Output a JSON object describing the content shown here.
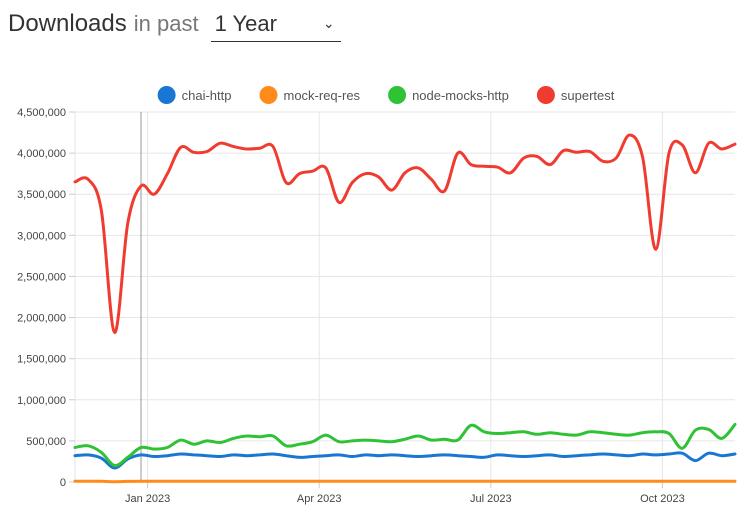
{
  "header": {
    "title": "Downloads",
    "subtitle": "in past",
    "period": "1 Year"
  },
  "colors": {
    "chai-http": "#1976d2",
    "mock-req-res": "#ff8c1a",
    "node-mocks-http": "#2ec234",
    "supertest": "#f03c30"
  },
  "chart_data": {
    "type": "line",
    "title": "Downloads in past 1 Year",
    "xlabel": "",
    "ylabel": "",
    "ylim": [
      0,
      4500000
    ],
    "yticks": [
      "0",
      "500,000",
      "1,000,000",
      "1,500,000",
      "2,000,000",
      "2,500,000",
      "3,000,000",
      "3,500,000",
      "4,000,000",
      "4,500,000"
    ],
    "xticks": [
      "Jan 2023",
      "Apr 2023",
      "Jul 2023",
      "Oct 2023"
    ],
    "xtick_positions": [
      5.5,
      18.5,
      31.5,
      44.5
    ],
    "x": [
      0,
      1,
      2,
      3,
      4,
      5,
      6,
      7,
      8,
      9,
      10,
      11,
      12,
      13,
      14,
      15,
      16,
      17,
      18,
      19,
      20,
      21,
      22,
      23,
      24,
      25,
      26,
      27,
      28,
      29,
      30,
      31,
      32,
      33,
      34,
      35,
      36,
      37,
      38,
      39,
      40,
      41,
      42,
      43,
      44,
      45,
      46,
      47,
      48,
      49,
      50
    ],
    "hover_index": 5,
    "series": [
      {
        "name": "chai-http",
        "values": [
          320000,
          330000,
          290000,
          170000,
          280000,
          330000,
          310000,
          320000,
          340000,
          330000,
          320000,
          310000,
          330000,
          320000,
          330000,
          340000,
          320000,
          300000,
          310000,
          320000,
          330000,
          310000,
          330000,
          320000,
          330000,
          320000,
          310000,
          320000,
          330000,
          320000,
          310000,
          300000,
          330000,
          320000,
          310000,
          320000,
          330000,
          310000,
          320000,
          330000,
          340000,
          330000,
          320000,
          340000,
          330000,
          340000,
          350000,
          260000,
          350000,
          320000,
          340000
        ]
      },
      {
        "name": "mock-req-res",
        "values": [
          9000,
          9000,
          8000,
          4000,
          7000,
          9000,
          9000,
          9000,
          9000,
          9000,
          9000,
          9000,
          9000,
          9000,
          9000,
          9000,
          9000,
          9000,
          9000,
          9000,
          9000,
          9000,
          9000,
          9000,
          9000,
          9000,
          9000,
          9000,
          9000,
          9000,
          9000,
          9000,
          9000,
          9000,
          9000,
          9000,
          9000,
          9000,
          9000,
          9000,
          9000,
          9000,
          9000,
          9000,
          9000,
          9000,
          9000,
          9000,
          9000,
          9000,
          9000
        ]
      },
      {
        "name": "node-mocks-http",
        "values": [
          420000,
          440000,
          360000,
          200000,
          300000,
          420000,
          400000,
          420000,
          510000,
          460000,
          500000,
          480000,
          530000,
          560000,
          550000,
          560000,
          440000,
          460000,
          490000,
          570000,
          490000,
          500000,
          510000,
          500000,
          490000,
          520000,
          560000,
          510000,
          520000,
          510000,
          690000,
          610000,
          590000,
          600000,
          610000,
          580000,
          600000,
          580000,
          570000,
          610000,
          600000,
          580000,
          570000,
          600000,
          610000,
          590000,
          410000,
          630000,
          640000,
          530000,
          700000
        ]
      },
      {
        "name": "supertest",
        "values": [
          3650000,
          3680000,
          3300000,
          1820000,
          3150000,
          3600000,
          3500000,
          3750000,
          4070000,
          4010000,
          4020000,
          4120000,
          4080000,
          4050000,
          4060000,
          4080000,
          3640000,
          3750000,
          3780000,
          3820000,
          3400000,
          3640000,
          3750000,
          3710000,
          3550000,
          3760000,
          3820000,
          3680000,
          3540000,
          4000000,
          3860000,
          3840000,
          3830000,
          3760000,
          3940000,
          3960000,
          3860000,
          4030000,
          4010000,
          4020000,
          3900000,
          3940000,
          4220000,
          3950000,
          2830000,
          4000000,
          4100000,
          3760000,
          4120000,
          4050000,
          4110000
        ]
      }
    ]
  }
}
